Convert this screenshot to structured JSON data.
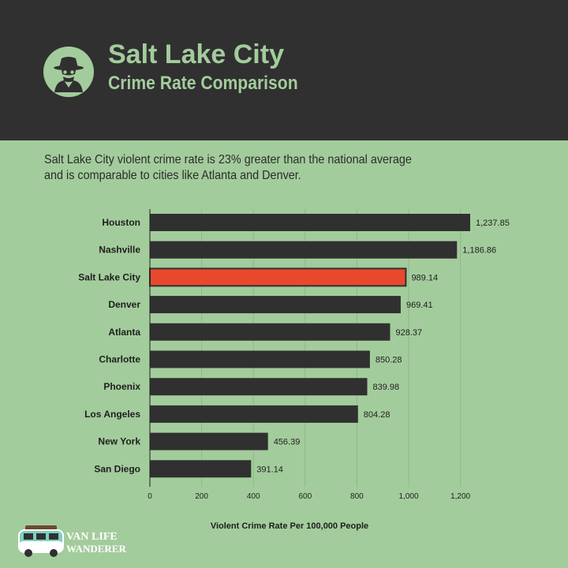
{
  "header": {
    "title": "Salt Lake City",
    "subtitle": "Crime Rate Comparison",
    "icon": "detective-icon"
  },
  "description": "Salt Lake City violent crime rate is 23% greater than the national average and is comparable to cities like Atlanta and Denver.",
  "brand": {
    "line1": "VAN LIFE",
    "line2": "WANDERER",
    "icon": "camper-van-icon"
  },
  "colors": {
    "background": "#a3cc9c",
    "header": "#303030",
    "bar": "#303030",
    "highlight": "#e8492c"
  },
  "chart_data": {
    "type": "bar",
    "orientation": "horizontal",
    "categories": [
      "Houston",
      "Nashville",
      "Salt Lake City",
      "Denver",
      "Atlanta",
      "Charlotte",
      "Phoenix",
      "Los Angeles",
      "New York",
      "San Diego"
    ],
    "values": [
      1237.85,
      1186.86,
      989.14,
      969.41,
      928.37,
      850.28,
      839.98,
      804.28,
      456.39,
      391.14
    ],
    "value_labels": [
      "1,237.85",
      "1,186.86",
      "989.14",
      "969.41",
      "928.37",
      "850.28",
      "839.98",
      "804.28",
      "456.39",
      "391.14"
    ],
    "highlight": "Salt Lake City",
    "xlabel": "Violent Crime Rate Per 100,000 People",
    "xlim": [
      0,
      1250
    ],
    "xticks": [
      0,
      200,
      400,
      600,
      800,
      1000,
      1200
    ],
    "xtick_labels": [
      "0",
      "200",
      "400",
      "600",
      "800",
      "1,000",
      "1,200"
    ],
    "grid": "vertical"
  }
}
